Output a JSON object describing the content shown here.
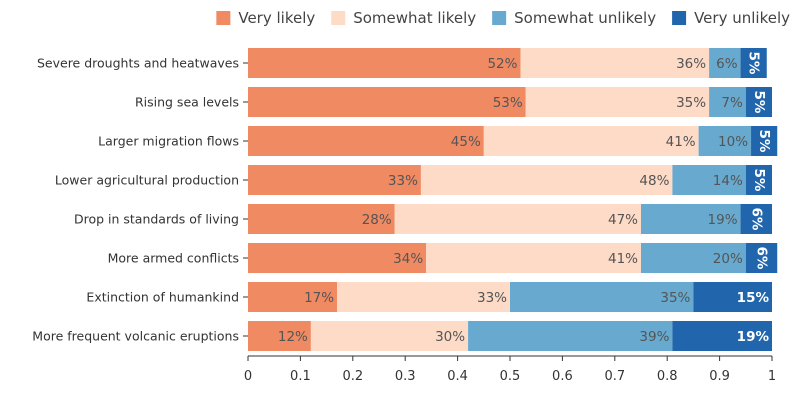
{
  "chart_data": {
    "type": "bar",
    "orientation": "horizontal",
    "stacked": true,
    "categories": [
      "Severe droughts and heatwaves",
      "Rising sea levels",
      "Larger migration flows",
      "Lower agricultural production",
      "Drop in standards of living",
      "More armed conflicts",
      "Extinction of humankind",
      "More frequent volcanic eruptions"
    ],
    "series": [
      {
        "name": "Very likely",
        "color": "#ef8a62",
        "values": [
          0.52,
          0.53,
          0.45,
          0.33,
          0.28,
          0.34,
          0.17,
          0.12
        ],
        "labels": [
          "52%",
          "53%",
          "45%",
          "33%",
          "28%",
          "34%",
          "17%",
          "12%"
        ]
      },
      {
        "name": "Somewhat likely",
        "color": "#fddbc7",
        "values": [
          0.36,
          0.35,
          0.41,
          0.48,
          0.47,
          0.41,
          0.33,
          0.3
        ],
        "labels": [
          "36%",
          "35%",
          "41%",
          "48%",
          "47%",
          "41%",
          "33%",
          "30%"
        ]
      },
      {
        "name": "Somewhat unlikely",
        "color": "#67a9cf",
        "values": [
          0.06,
          0.07,
          0.1,
          0.14,
          0.19,
          0.2,
          0.35,
          0.39
        ],
        "labels": [
          "6%",
          "7%",
          "10%",
          "14%",
          "19%",
          "20%",
          "35%",
          "39%"
        ]
      },
      {
        "name": "Very unlikely",
        "color": "#2166ac",
        "values": [
          0.05,
          0.05,
          0.05,
          0.05,
          0.06,
          0.06,
          0.15,
          0.19
        ],
        "labels": [
          "5%",
          "5%",
          "5%",
          "5%",
          "6%",
          "6%",
          "15%",
          "19%"
        ]
      }
    ],
    "xlim": [
      0,
      1
    ],
    "xticks": [
      "0",
      "0.1",
      "0.2",
      "0.3",
      "0.4",
      "0.5",
      "0.6",
      "0.7",
      "0.8",
      "0.9",
      "1"
    ],
    "legend_position": "top-right",
    "grid": false
  }
}
